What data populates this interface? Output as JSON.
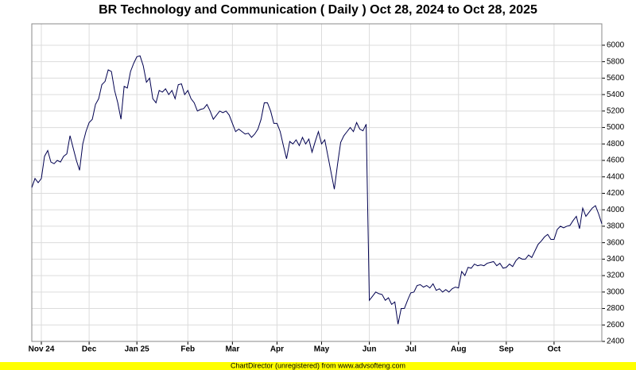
{
  "chart_data": {
    "type": "line",
    "title": "BR Technology and Communication ( Daily ) Oct 28, 2024 to Oct 28, 2025",
    "footer": "ChartDirector (unregistered) from www.advsofteng.com",
    "color": "#000050",
    "grid": true,
    "ylim": [
      2400,
      6260
    ],
    "yticks": [
      2400,
      2600,
      2800,
      3000,
      3200,
      3400,
      3600,
      3800,
      4000,
      4200,
      4400,
      4600,
      4800,
      5000,
      5200,
      5400,
      5600,
      5800,
      6000
    ],
    "categories": [
      null,
      null,
      null,
      "Nov 24",
      null,
      null,
      null,
      null,
      null,
      null,
      null,
      null,
      null,
      null,
      null,
      null,
      null,
      null,
      "Dec",
      null,
      null,
      null,
      null,
      null,
      null,
      null,
      null,
      null,
      null,
      null,
      null,
      null,
      null,
      "Jan 25",
      null,
      null,
      null,
      null,
      null,
      null,
      null,
      null,
      null,
      null,
      null,
      null,
      null,
      null,
      null,
      "Feb",
      null,
      null,
      null,
      null,
      null,
      null,
      null,
      null,
      null,
      null,
      null,
      null,
      null,
      "Mar",
      null,
      null,
      null,
      null,
      null,
      null,
      null,
      null,
      null,
      null,
      null,
      null,
      null,
      "Apr",
      null,
      null,
      null,
      null,
      null,
      null,
      null,
      null,
      null,
      null,
      null,
      null,
      null,
      "May",
      null,
      null,
      null,
      null,
      null,
      null,
      null,
      null,
      null,
      null,
      null,
      null,
      null,
      null,
      "Jun",
      null,
      null,
      null,
      null,
      null,
      null,
      null,
      null,
      null,
      null,
      null,
      null,
      "Jul",
      null,
      null,
      null,
      null,
      null,
      null,
      null,
      null,
      null,
      null,
      null,
      null,
      null,
      null,
      "Aug",
      null,
      null,
      null,
      null,
      null,
      null,
      null,
      null,
      null,
      null,
      null,
      null,
      null,
      null,
      "Sep",
      null,
      null,
      null,
      null,
      null,
      null,
      null,
      null,
      null,
      null,
      null,
      null,
      null,
      null,
      "Oct",
      null,
      null,
      null,
      null,
      null,
      null,
      null,
      null,
      null,
      null,
      null,
      null,
      null,
      null,
      null
    ],
    "values": [
      4270,
      4380,
      4330,
      4380,
      4650,
      4720,
      4580,
      4560,
      4600,
      4580,
      4650,
      4680,
      4900,
      4750,
      4600,
      4480,
      4800,
      4950,
      5060,
      5100,
      5280,
      5350,
      5520,
      5560,
      5700,
      5680,
      5450,
      5300,
      5100,
      5500,
      5480,
      5680,
      5780,
      5860,
      5870,
      5750,
      5550,
      5600,
      5350,
      5300,
      5450,
      5430,
      5470,
      5400,
      5450,
      5350,
      5520,
      5530,
      5400,
      5450,
      5350,
      5300,
      5200,
      5220,
      5230,
      5280,
      5200,
      5100,
      5150,
      5200,
      5180,
      5200,
      5150,
      5050,
      4950,
      4980,
      4950,
      4920,
      4930,
      4880,
      4920,
      4980,
      5100,
      5300,
      5300,
      5200,
      5050,
      5050,
      4950,
      4780,
      4620,
      4830,
      4800,
      4850,
      4780,
      4880,
      4800,
      4860,
      4700,
      4830,
      4950,
      4800,
      4850,
      4650,
      4450,
      4250,
      4550,
      4820,
      4900,
      4950,
      5000,
      4950,
      5060,
      4980,
      4960,
      5040,
      2900,
      2950,
      3000,
      2980,
      2970,
      2900,
      2930,
      2850,
      2880,
      2610,
      2800,
      2800,
      2900,
      2990,
      3000,
      3080,
      3090,
      3060,
      3080,
      3050,
      3100,
      3020,
      3040,
      3000,
      3030,
      3000,
      3040,
      3060,
      3050,
      3250,
      3200,
      3300,
      3290,
      3340,
      3320,
      3330,
      3320,
      3350,
      3360,
      3370,
      3320,
      3350,
      3290,
      3300,
      3340,
      3310,
      3380,
      3420,
      3400,
      3400,
      3450,
      3420,
      3500,
      3580,
      3620,
      3670,
      3700,
      3640,
      3640,
      3760,
      3800,
      3780,
      3800,
      3810,
      3870,
      3920,
      3770,
      4020,
      3920,
      3970,
      4020,
      4050,
      3950,
      3830
    ]
  }
}
